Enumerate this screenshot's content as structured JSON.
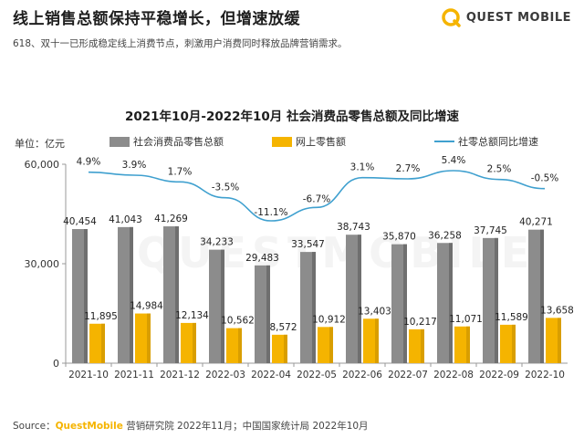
{
  "header": {
    "title": "线上销售总额保持平稳增长，但增速放缓",
    "subtitle": "618、双十一已形成稳定线上消费节点，刺激用户消费同时释放品牌营销需求。"
  },
  "brand": {
    "name": "QUEST MOBILE",
    "accent": "#f5b400"
  },
  "watermark": "QUESTMOBILE",
  "chart_data": {
    "type": "bar",
    "title": "2021年10月-2022年10月 社会消费品零售总额及同比增速",
    "unit_label": "单位：亿元",
    "categories": [
      "2021-10",
      "2021-11",
      "2021-12",
      "2022-03",
      "2022-04",
      "2022-05",
      "2022-06",
      "2022-07",
      "2022-08",
      "2022-09",
      "2022-10"
    ],
    "ylim": [
      0,
      60000
    ],
    "yticks": [
      "0",
      "30,000",
      "60,000"
    ],
    "ytick_values": [
      0,
      30000,
      60000
    ],
    "series": [
      {
        "name": "社会消费品零售总额",
        "type": "bar",
        "color": "#8c8c8c",
        "values": [
          40454,
          41043,
          41269,
          34233,
          29483,
          33547,
          38743,
          35870,
          36258,
          37745,
          40271
        ],
        "labels": [
          "40,454",
          "41,043",
          "41,269",
          "34,233",
          "29,483",
          "33,547",
          "38,743",
          "35,870",
          "36,258",
          "37,745",
          "40,271"
        ]
      },
      {
        "name": "网上零售额",
        "type": "bar",
        "color": "#f5b400",
        "values": [
          11895,
          14984,
          12134,
          10562,
          8572,
          10912,
          13403,
          10217,
          11071,
          11589,
          13658
        ],
        "labels": [
          "11,895",
          "14,984",
          "12,134",
          "10,562",
          "8,572",
          "10,912",
          "13,403",
          "10,217",
          "11,071",
          "11,589",
          "13,658"
        ]
      },
      {
        "name": "社零总额同比增速",
        "type": "line",
        "color": "#3fa0cf",
        "values": [
          4.9,
          3.9,
          1.7,
          -3.5,
          -11.1,
          -6.7,
          3.1,
          2.7,
          5.4,
          2.5,
          -0.5
        ],
        "labels": [
          "4.9%",
          "3.9%",
          "1.7%",
          "-3.5%",
          "-11.1%",
          "-6.7%",
          "3.1%",
          "2.7%",
          "5.4%",
          "2.5%",
          "-0.5%"
        ]
      }
    ],
    "legend_position": "top",
    "grid": false
  },
  "source": {
    "prefix": "Source：",
    "brand": "QuestMobile",
    "text": " 营销研究院 2022年11月；中国国家统计局 2022年10月"
  }
}
